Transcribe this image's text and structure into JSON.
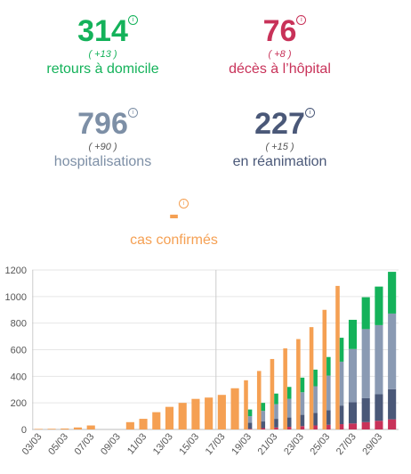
{
  "stats": {
    "retours": {
      "value": "314",
      "delta": "( +13 )",
      "label": "retours à domicile",
      "color": "#14b25a"
    },
    "deces": {
      "value": "76",
      "delta": "( +8 )",
      "label": "décès à l’hôpital",
      "color": "#c83259"
    },
    "hosp": {
      "value": "796",
      "delta": "( +90 )",
      "label": "hospitalisations",
      "color": "#7d8fa6"
    },
    "rea": {
      "value": "227",
      "delta": "( +15 )",
      "label": "en réanimation",
      "color": "#4a5878"
    },
    "cas": {
      "value": "-",
      "label": "cas confirmés",
      "color": "#f5a053"
    },
    "info_glyph": "i"
  },
  "chart_data": {
    "type": "bar",
    "ylim": [
      0,
      1200
    ],
    "yticks": [
      0,
      200,
      400,
      600,
      800,
      1000,
      1200
    ],
    "xtick_labels": [
      "03/03",
      "05/03",
      "07/03",
      "09/03",
      "11/03",
      "13/03",
      "15/03",
      "17/03",
      "19/03",
      "21/03",
      "23/03",
      "25/03",
      "27/03",
      "29/03"
    ],
    "dates": [
      "03/03",
      "04/03",
      "05/03",
      "06/03",
      "07/03",
      "08/03",
      "09/03",
      "10/03",
      "11/03",
      "12/03",
      "13/03",
      "14/03",
      "15/03",
      "16/03",
      "17/03",
      "18/03",
      "19/03",
      "20/03",
      "21/03",
      "22/03",
      "23/03",
      "24/03",
      "25/03",
      "26/03",
      "27/03",
      "28/03",
      "29/03",
      "30/03"
    ],
    "cas_confirmes": [
      4,
      5,
      7,
      15,
      30,
      null,
      null,
      55,
      80,
      130,
      170,
      200,
      230,
      240,
      260,
      310,
      370,
      440,
      530,
      610,
      680,
      770,
      900,
      1080,
      null,
      null,
      null,
      null
    ],
    "stacked": [
      {
        "name": "décès",
        "color": "#c83259",
        "values": [
          0,
          0,
          0,
          0,
          0,
          0,
          0,
          0,
          0,
          0,
          0,
          0,
          0,
          0,
          0,
          0,
          5,
          10,
          15,
          20,
          25,
          30,
          35,
          40,
          45,
          55,
          65,
          76
        ]
      },
      {
        "name": "réanimation",
        "color": "#4a5878",
        "values": [
          0,
          0,
          0,
          0,
          0,
          0,
          0,
          0,
          0,
          0,
          0,
          0,
          0,
          0,
          0,
          0,
          45,
          50,
          65,
          70,
          85,
          95,
          110,
          140,
          160,
          180,
          200,
          227
        ]
      },
      {
        "name": "hospitalisations",
        "color": "#8a9ab3",
        "values": [
          0,
          0,
          0,
          0,
          0,
          0,
          0,
          0,
          0,
          0,
          0,
          0,
          0,
          0,
          0,
          0,
          50,
          80,
          110,
          140,
          170,
          200,
          260,
          330,
          400,
          520,
          520,
          569
        ]
      },
      {
        "name": "retours",
        "color": "#14b25a",
        "values": [
          0,
          0,
          0,
          0,
          0,
          0,
          0,
          0,
          0,
          0,
          0,
          0,
          0,
          0,
          0,
          0,
          50,
          60,
          80,
          90,
          110,
          125,
          140,
          180,
          220,
          240,
          290,
          314
        ]
      }
    ],
    "gridlines": true,
    "vertical_lines_at": [
      "03/03",
      "17/03"
    ]
  }
}
